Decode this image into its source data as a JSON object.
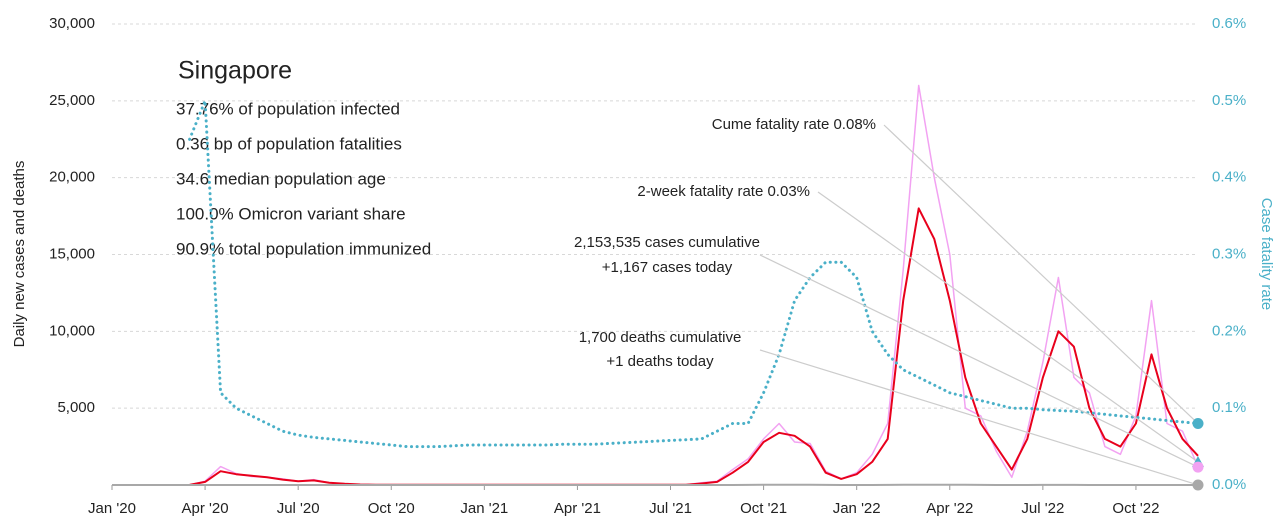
{
  "chart_data": {
    "type": "line",
    "title": "Singapore",
    "stats": [
      "37.76% of population infected",
      "0.36 bp of population fatalities",
      "34.6 median population age",
      "100.0% Omicron variant share",
      "90.9% total population immunized"
    ],
    "y_label": "Daily new cases and deaths",
    "y2_label": "Case fatality rate",
    "x": [
      0,
      0.5,
      1,
      1.5,
      2,
      2.5,
      3,
      3.5,
      4,
      4.5,
      5,
      5.5,
      6,
      6.5,
      7,
      7.5,
      8,
      8.5,
      9,
      9.5,
      10,
      10.5,
      11,
      11.5,
      12,
      12.5,
      13,
      13.5,
      14,
      14.5,
      15,
      15.5,
      16,
      16.5,
      17,
      17.5,
      18,
      18.5,
      19,
      19.5,
      20,
      20.5,
      21,
      21.5,
      22,
      22.5,
      23,
      23.5,
      24,
      24.5,
      25,
      25.5,
      26,
      26.5,
      27,
      27.5,
      28,
      28.5,
      29,
      29.5,
      30,
      30.5,
      31,
      31.5,
      32,
      32.5,
      33,
      33.5,
      34,
      34.5,
      35
    ],
    "xlim": [
      0,
      35
    ],
    "xticks": [
      {
        "value": 0,
        "label": "Jan '20"
      },
      {
        "value": 3,
        "label": "Apr '20"
      },
      {
        "value": 6,
        "label": "Jul '20"
      },
      {
        "value": 9,
        "label": "Oct '20"
      },
      {
        "value": 12,
        "label": "Jan '21"
      },
      {
        "value": 15,
        "label": "Apr '21"
      },
      {
        "value": 18,
        "label": "Jul '21"
      },
      {
        "value": 21,
        "label": "Oct '21"
      },
      {
        "value": 24,
        "label": "Jan '22"
      },
      {
        "value": 27,
        "label": "Apr '22"
      },
      {
        "value": 30,
        "label": "Jul '22"
      },
      {
        "value": 33,
        "label": "Oct '22"
      }
    ],
    "ylim": [
      0,
      30000
    ],
    "yticks": [
      {
        "value": 5000,
        "label": "5,000"
      },
      {
        "value": 10000,
        "label": "10,000"
      },
      {
        "value": 15000,
        "label": "15,000"
      },
      {
        "value": 20000,
        "label": "20,000"
      },
      {
        "value": 25000,
        "label": "25,000"
      },
      {
        "value": 30000,
        "label": "30,000"
      }
    ],
    "y2lim": [
      0,
      0.6
    ],
    "y2ticks": [
      {
        "value": 0,
        "label": "0.0%"
      },
      {
        "value": 0.1,
        "label": "0.1%"
      },
      {
        "value": 0.2,
        "label": "0.2%"
      },
      {
        "value": 0.3,
        "label": "0.3%"
      },
      {
        "value": 0.4,
        "label": "0.4%"
      },
      {
        "value": 0.5,
        "label": "0.5%"
      },
      {
        "value": 0.6,
        "label": "0.6%"
      }
    ],
    "grid": true,
    "series": [
      {
        "color": "#f2a2f2",
        "width": 1.5,
        "values": [
          0,
          0,
          0,
          0,
          0,
          5,
          250,
          1200,
          750,
          550,
          500,
          400,
          250,
          350,
          150,
          80,
          30,
          10,
          10,
          10,
          10,
          10,
          10,
          10,
          10,
          10,
          10,
          10,
          10,
          10,
          10,
          10,
          10,
          10,
          10,
          10,
          10,
          10,
          150,
          250,
          1000,
          1700,
          3000,
          4000,
          2800,
          2700,
          900,
          400,
          800,
          2000,
          4000,
          14000,
          26000,
          20000,
          15000,
          5000,
          4500,
          2200,
          500,
          3500,
          8000,
          13500,
          7000,
          6000,
          2500,
          2000,
          4500,
          12000,
          4000,
          3500,
          1200
        ]
      },
      {
        "color": "#e8001c",
        "width": 2,
        "values": [
          0,
          0,
          0,
          0,
          0,
          5,
          200,
          900,
          700,
          600,
          500,
          350,
          250,
          300,
          150,
          80,
          30,
          10,
          10,
          10,
          10,
          10,
          10,
          10,
          10,
          10,
          10,
          10,
          10,
          10,
          10,
          10,
          10,
          10,
          10,
          10,
          10,
          10,
          100,
          200,
          800,
          1500,
          2800,
          3400,
          3200,
          2500,
          800,
          400,
          700,
          1500,
          3000,
          12000,
          18000,
          16000,
          12000,
          7000,
          4000,
          2500,
          1000,
          3000,
          7000,
          10000,
          9000,
          5000,
          3000,
          2500,
          4000,
          8500,
          5000,
          3000,
          1900
        ]
      },
      {
        "color": "#a8a8a8",
        "width": 2,
        "values": [
          0,
          0,
          0,
          0,
          0,
          0,
          0,
          1,
          1,
          0,
          0,
          0,
          0,
          0,
          0,
          0,
          0,
          0,
          0,
          0,
          0,
          0,
          0,
          0,
          0,
          0,
          0,
          0,
          0,
          0,
          0,
          0,
          0,
          0,
          0,
          0,
          0,
          0,
          0,
          1,
          2,
          5,
          12,
          12,
          12,
          12,
          5,
          2,
          1,
          2,
          5,
          10,
          15,
          15,
          15,
          15,
          5,
          2,
          1,
          2,
          5,
          8,
          5,
          3,
          2,
          1,
          2,
          3,
          2,
          1,
          1
        ]
      },
      {
        "color": "#4ab0c8",
        "axis": "y2",
        "dotted": true,
        "width": 3,
        "values": [
          null,
          null,
          null,
          null,
          null,
          0.45,
          0.5,
          0.12,
          0.1,
          0.09,
          0.08,
          0.07,
          0.065,
          0.062,
          0.06,
          0.058,
          0.056,
          0.054,
          0.052,
          0.05,
          0.05,
          0.05,
          0.051,
          0.052,
          0.052,
          0.052,
          0.052,
          0.052,
          0.052,
          0.053,
          0.053,
          0.053,
          0.054,
          0.055,
          0.056,
          0.057,
          0.058,
          0.059,
          0.06,
          0.07,
          0.08,
          0.08,
          0.12,
          0.17,
          0.24,
          0.27,
          0.29,
          0.29,
          0.27,
          0.2,
          0.17,
          0.15,
          0.14,
          0.13,
          0.12,
          0.115,
          0.11,
          0.105,
          0.1,
          0.1,
          0.098,
          0.097,
          0.096,
          0.094,
          0.092,
          0.09,
          0.088,
          0.086,
          0.084,
          0.082,
          0.08
        ]
      }
    ],
    "annotations": [
      {
        "text": [
          "Cume fatality rate 0.08%"
        ],
        "value": 0.08,
        "axis": "y2",
        "color": "#4ab0c8"
      },
      {
        "text": [
          "2-week fatality rate 0.03%"
        ],
        "value": 0.03,
        "axis": "y2",
        "color": "#4ab0c8"
      },
      {
        "text": [
          "2,153,535 cases cumulative",
          "+1,167 cases today"
        ],
        "value": 1167,
        "color": "#f2a2f2"
      },
      {
        "text": [
          "1,700 deaths cumulative",
          "+1 deaths today"
        ],
        "value": 1,
        "color": "#a8a8a8"
      }
    ]
  }
}
